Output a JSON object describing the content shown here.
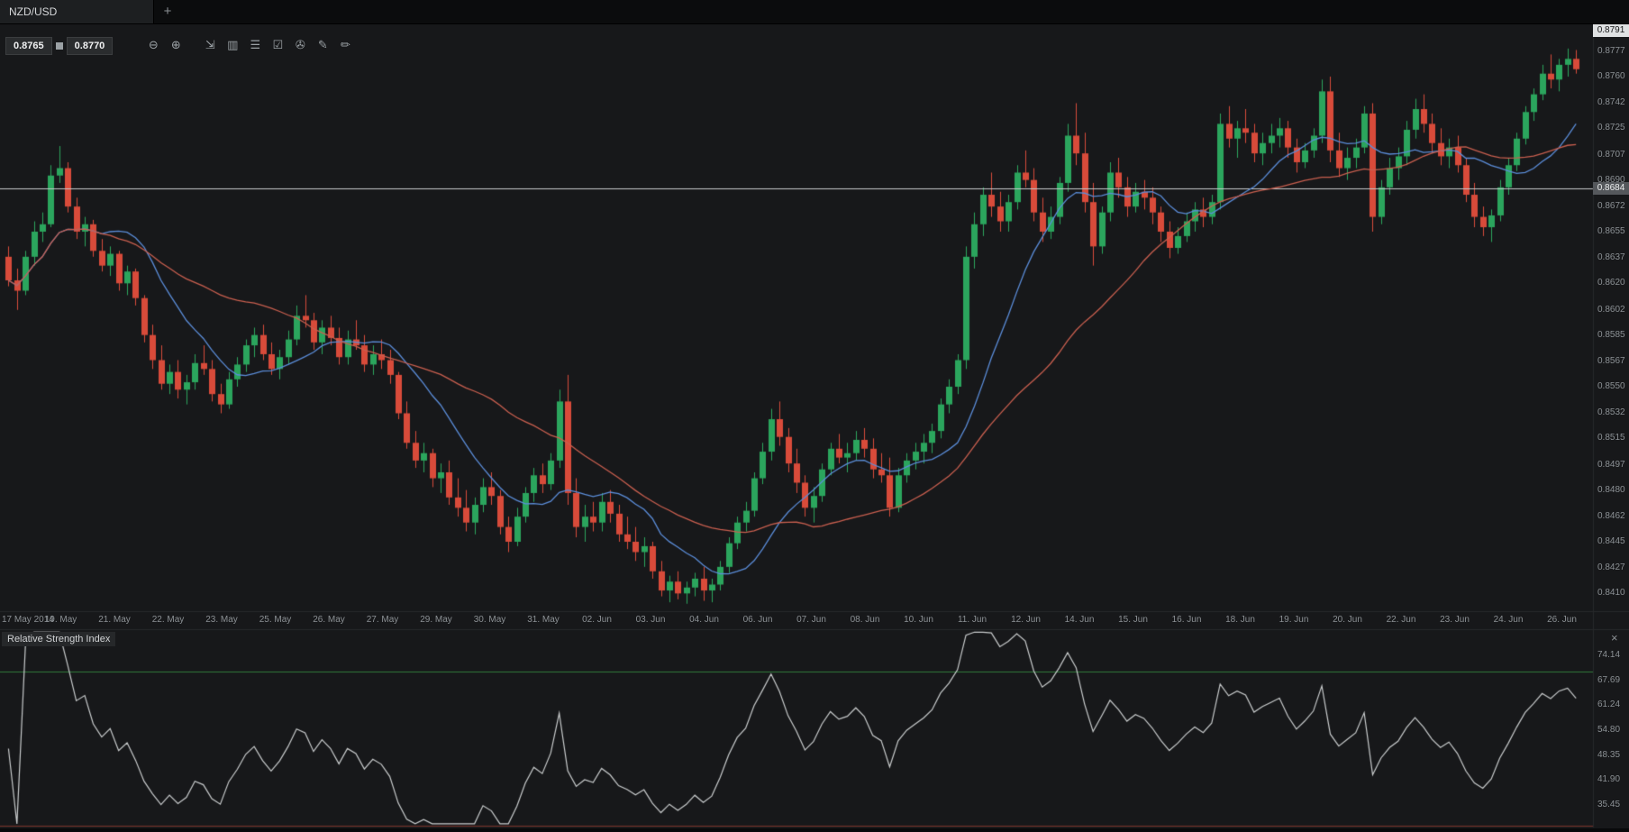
{
  "window": {
    "tab_label": "NZD/USD",
    "new_tab_label": "+"
  },
  "toolbar": {
    "sell_price": "0.8765",
    "buy_price": "0.8770",
    "icons": [
      {
        "name": "zoom-out-icon",
        "glyph": "⊖"
      },
      {
        "name": "zoom-in-icon",
        "glyph": "⊕",
        "gap_after": true
      },
      {
        "name": "scroll-to-latest-icon",
        "glyph": "⇲"
      },
      {
        "name": "chart-type-icon",
        "glyph": "▥"
      },
      {
        "name": "indicators-list-icon",
        "glyph": "☰"
      },
      {
        "name": "checkbox-options-icon",
        "glyph": "☑"
      },
      {
        "name": "attach-icon",
        "glyph": "✇"
      },
      {
        "name": "edit-annotations-icon",
        "glyph": "✎"
      },
      {
        "name": "draw-tool-icon",
        "glyph": "✏"
      }
    ]
  },
  "price_axis": {
    "top_marker": "0.8791",
    "line_marker": "0.8684",
    "labels": [
      "0.8777",
      "0.8760",
      "0.8742",
      "0.8725",
      "0.8707",
      "0.8690",
      "0.8672",
      "0.8655",
      "0.8637",
      "0.8620",
      "0.8602",
      "0.8585",
      "0.8567",
      "0.8550",
      "0.8532",
      "0.8515",
      "0.8497",
      "0.8480",
      "0.8462",
      "0.8445",
      "0.8427",
      "0.8410"
    ]
  },
  "time_axis": {
    "labels": [
      "17 May 2014",
      "19. May",
      "21. May",
      "22. May",
      "23. May",
      "25. May",
      "26. May",
      "27. May",
      "29. May",
      "30. May",
      "31. May",
      "02. Jun",
      "03. Jun",
      "04. Jun",
      "06. Jun",
      "07. Jun",
      "08. Jun",
      "10. Jun",
      "11. Jun",
      "12. Jun",
      "14. Jun",
      "15. Jun",
      "16. Jun",
      "18. Jun",
      "19. Jun",
      "20. Jun",
      "22. Jun",
      "23. Jun",
      "24. Jun",
      "26. Jun"
    ]
  },
  "indicator_panel": {
    "title": "Relative Strength Index",
    "close_label": "×",
    "axis_labels": [
      "74.14",
      "67.69",
      "61.24",
      "54.80",
      "48.35",
      "41.90",
      "35.45"
    ]
  },
  "colors": {
    "chart_bg": "#17181a",
    "separator": "#26282a",
    "up": "#2ba55d",
    "down": "#d84b3a",
    "price_line": "#c7cacc",
    "rsi_line": "#c9cccd",
    "overbought": "#2f7d3c",
    "oversold": "#7d352c"
  },
  "chart_data": {
    "type": "candlestick",
    "symbol": "NZD/USD",
    "x_range": [
      "17 May 2014",
      "26 Jun 2014"
    ],
    "price_range": [
      0.8398,
      0.8796
    ],
    "horizontal_line": 0.8684,
    "high_marker": 0.8791,
    "bid": 0.8765,
    "ask": 0.877,
    "overlays": [
      {
        "name": "sma-fast",
        "period": 12,
        "color": "#5b8dd9"
      },
      {
        "name": "sma-slow",
        "period": 30,
        "color": "#c95f4f"
      }
    ],
    "indicator": {
      "name": "Relative Strength Index",
      "period": 14,
      "overbought": 70,
      "oversold": 30,
      "range": [
        30.0,
        80.5
      ]
    },
    "candles": [
      [
        0.8638,
        0.8645,
        0.8618,
        0.8622
      ],
      [
        0.8622,
        0.863,
        0.8602,
        0.8615
      ],
      [
        0.8615,
        0.8642,
        0.8612,
        0.8638
      ],
      [
        0.8638,
        0.8662,
        0.8632,
        0.8655
      ],
      [
        0.8655,
        0.8668,
        0.8648,
        0.866
      ],
      [
        0.866,
        0.87,
        0.8658,
        0.8693
      ],
      [
        0.8693,
        0.8713,
        0.8688,
        0.8698
      ],
      [
        0.8698,
        0.8702,
        0.8668,
        0.8672
      ],
      [
        0.8672,
        0.8678,
        0.865,
        0.8655
      ],
      [
        0.8655,
        0.8665,
        0.8645,
        0.866
      ],
      [
        0.866,
        0.8663,
        0.8638,
        0.8642
      ],
      [
        0.8642,
        0.865,
        0.8628,
        0.8632
      ],
      [
        0.8632,
        0.8645,
        0.8625,
        0.864
      ],
      [
        0.864,
        0.8642,
        0.8615,
        0.862
      ],
      [
        0.862,
        0.8632,
        0.8612,
        0.8628
      ],
      [
        0.8628,
        0.863,
        0.8605,
        0.861
      ],
      [
        0.861,
        0.8612,
        0.858,
        0.8585
      ],
      [
        0.8585,
        0.8592,
        0.8562,
        0.8568
      ],
      [
        0.8568,
        0.8578,
        0.8548,
        0.8552
      ],
      [
        0.8552,
        0.8565,
        0.8545,
        0.856
      ],
      [
        0.856,
        0.8568,
        0.8542,
        0.8548
      ],
      [
        0.8548,
        0.8558,
        0.8538,
        0.8553
      ],
      [
        0.8553,
        0.8572,
        0.8548,
        0.8566
      ],
      [
        0.8566,
        0.8578,
        0.8558,
        0.8562
      ],
      [
        0.8562,
        0.8568,
        0.854,
        0.8545
      ],
      [
        0.8545,
        0.8552,
        0.8532,
        0.8538
      ],
      [
        0.8538,
        0.856,
        0.8535,
        0.8555
      ],
      [
        0.8555,
        0.857,
        0.855,
        0.8565
      ],
      [
        0.8565,
        0.8582,
        0.856,
        0.8578
      ],
      [
        0.8578,
        0.859,
        0.857,
        0.8585
      ],
      [
        0.8585,
        0.8592,
        0.8568,
        0.8572
      ],
      [
        0.8572,
        0.858,
        0.8558,
        0.8562
      ],
      [
        0.8562,
        0.8575,
        0.8555,
        0.857
      ],
      [
        0.857,
        0.8588,
        0.8565,
        0.8582
      ],
      [
        0.8582,
        0.8605,
        0.8578,
        0.8598
      ],
      [
        0.8598,
        0.8612,
        0.859,
        0.8595
      ],
      [
        0.8595,
        0.86,
        0.8575,
        0.858
      ],
      [
        0.858,
        0.8595,
        0.8572,
        0.859
      ],
      [
        0.859,
        0.8598,
        0.8578,
        0.8583
      ],
      [
        0.8583,
        0.859,
        0.8565,
        0.857
      ],
      [
        0.857,
        0.8588,
        0.8565,
        0.8582
      ],
      [
        0.8582,
        0.8595,
        0.8575,
        0.8578
      ],
      [
        0.8578,
        0.8585,
        0.856,
        0.8565
      ],
      [
        0.8565,
        0.8578,
        0.8558,
        0.8572
      ],
      [
        0.8572,
        0.8582,
        0.8562,
        0.8568
      ],
      [
        0.8568,
        0.8575,
        0.8552,
        0.8558
      ],
      [
        0.8558,
        0.856,
        0.8528,
        0.8532
      ],
      [
        0.8532,
        0.854,
        0.8508,
        0.8512
      ],
      [
        0.8512,
        0.852,
        0.8495,
        0.85
      ],
      [
        0.85,
        0.8512,
        0.8492,
        0.8505
      ],
      [
        0.8505,
        0.8508,
        0.8482,
        0.8488
      ],
      [
        0.8488,
        0.8498,
        0.8478,
        0.8492
      ],
      [
        0.8492,
        0.85,
        0.847,
        0.8475
      ],
      [
        0.8475,
        0.8488,
        0.8462,
        0.8468
      ],
      [
        0.8468,
        0.848,
        0.8452,
        0.8458
      ],
      [
        0.8458,
        0.8475,
        0.845,
        0.847
      ],
      [
        0.847,
        0.8488,
        0.8465,
        0.8482
      ],
      [
        0.8482,
        0.8492,
        0.847,
        0.8476
      ],
      [
        0.8476,
        0.848,
        0.845,
        0.8455
      ],
      [
        0.8455,
        0.8462,
        0.8438,
        0.8445
      ],
      [
        0.8445,
        0.8468,
        0.8442,
        0.8462
      ],
      [
        0.8462,
        0.8482,
        0.8458,
        0.8478
      ],
      [
        0.8478,
        0.8495,
        0.8472,
        0.849
      ],
      [
        0.849,
        0.8498,
        0.8478,
        0.8484
      ],
      [
        0.8484,
        0.8505,
        0.848,
        0.85
      ],
      [
        0.85,
        0.8548,
        0.8495,
        0.854
      ],
      [
        0.854,
        0.8558,
        0.847,
        0.8478
      ],
      [
        0.8478,
        0.8488,
        0.8448,
        0.8455
      ],
      [
        0.8455,
        0.847,
        0.8445,
        0.8462
      ],
      [
        0.8462,
        0.8472,
        0.8452,
        0.8458
      ],
      [
        0.8458,
        0.8478,
        0.8452,
        0.8472
      ],
      [
        0.8472,
        0.848,
        0.8458,
        0.8464
      ],
      [
        0.8464,
        0.847,
        0.8445,
        0.845
      ],
      [
        0.845,
        0.8462,
        0.844,
        0.8445
      ],
      [
        0.8445,
        0.8455,
        0.8432,
        0.8438
      ],
      [
        0.8438,
        0.8448,
        0.8428,
        0.8442
      ],
      [
        0.8442,
        0.8445,
        0.842,
        0.8425
      ],
      [
        0.8425,
        0.8432,
        0.8408,
        0.8412
      ],
      [
        0.8412,
        0.8422,
        0.8404,
        0.8418
      ],
      [
        0.8418,
        0.8425,
        0.8406,
        0.841
      ],
      [
        0.841,
        0.8418,
        0.8403,
        0.8414
      ],
      [
        0.8414,
        0.8424,
        0.8408,
        0.842
      ],
      [
        0.842,
        0.8428,
        0.8405,
        0.8412
      ],
      [
        0.8412,
        0.842,
        0.8404,
        0.8416
      ],
      [
        0.8416,
        0.8432,
        0.8412,
        0.8428
      ],
      [
        0.8428,
        0.8448,
        0.8424,
        0.8444
      ],
      [
        0.8444,
        0.8462,
        0.844,
        0.8458
      ],
      [
        0.8458,
        0.8472,
        0.8452,
        0.8466
      ],
      [
        0.8466,
        0.8492,
        0.8462,
        0.8488
      ],
      [
        0.8488,
        0.8512,
        0.8484,
        0.8506
      ],
      [
        0.8506,
        0.8535,
        0.85,
        0.8528
      ],
      [
        0.8528,
        0.854,
        0.851,
        0.8516
      ],
      [
        0.8516,
        0.8522,
        0.8492,
        0.8498
      ],
      [
        0.8498,
        0.8508,
        0.8478,
        0.8485
      ],
      [
        0.8485,
        0.849,
        0.8462,
        0.8468
      ],
      [
        0.8468,
        0.8482,
        0.8458,
        0.8476
      ],
      [
        0.8476,
        0.8498,
        0.8472,
        0.8494
      ],
      [
        0.8494,
        0.8512,
        0.849,
        0.8508
      ],
      [
        0.8508,
        0.8518,
        0.8498,
        0.8502
      ],
      [
        0.8502,
        0.8512,
        0.8492,
        0.8505
      ],
      [
        0.8505,
        0.852,
        0.85,
        0.8514
      ],
      [
        0.8514,
        0.8522,
        0.8502,
        0.8508
      ],
      [
        0.8508,
        0.8515,
        0.8488,
        0.8494
      ],
      [
        0.8494,
        0.8505,
        0.8485,
        0.849
      ],
      [
        0.849,
        0.8502,
        0.8462,
        0.8468
      ],
      [
        0.8468,
        0.8495,
        0.8465,
        0.849
      ],
      [
        0.849,
        0.8505,
        0.8485,
        0.85
      ],
      [
        0.85,
        0.8512,
        0.8494,
        0.8506
      ],
      [
        0.8506,
        0.8518,
        0.8498,
        0.8512
      ],
      [
        0.8512,
        0.8525,
        0.8505,
        0.852
      ],
      [
        0.852,
        0.8542,
        0.8515,
        0.8538
      ],
      [
        0.8538,
        0.8555,
        0.8532,
        0.855
      ],
      [
        0.855,
        0.8572,
        0.8545,
        0.8568
      ],
      [
        0.8568,
        0.8645,
        0.8562,
        0.8638
      ],
      [
        0.8638,
        0.8668,
        0.863,
        0.866
      ],
      [
        0.866,
        0.8685,
        0.8652,
        0.868
      ],
      [
        0.868,
        0.8695,
        0.8665,
        0.8672
      ],
      [
        0.8672,
        0.8682,
        0.8655,
        0.8662
      ],
      [
        0.8662,
        0.868,
        0.8655,
        0.8675
      ],
      [
        0.8675,
        0.87,
        0.867,
        0.8695
      ],
      [
        0.8695,
        0.871,
        0.8685,
        0.869
      ],
      [
        0.869,
        0.8698,
        0.8662,
        0.8668
      ],
      [
        0.8668,
        0.8678,
        0.8648,
        0.8655
      ],
      [
        0.8655,
        0.8672,
        0.865,
        0.8665
      ],
      [
        0.8665,
        0.8692,
        0.866,
        0.8688
      ],
      [
        0.8688,
        0.8728,
        0.8682,
        0.872
      ],
      [
        0.872,
        0.8742,
        0.87,
        0.8708
      ],
      [
        0.8708,
        0.8722,
        0.8668,
        0.8675
      ],
      [
        0.8675,
        0.8688,
        0.8632,
        0.8645
      ],
      [
        0.8645,
        0.8672,
        0.864,
        0.8668
      ],
      [
        0.8668,
        0.8702,
        0.8662,
        0.8695
      ],
      [
        0.8695,
        0.8705,
        0.8678,
        0.8685
      ],
      [
        0.8685,
        0.8692,
        0.8665,
        0.8672
      ],
      [
        0.8672,
        0.8688,
        0.8668,
        0.8682
      ],
      [
        0.8682,
        0.869,
        0.867,
        0.8678
      ],
      [
        0.8678,
        0.8685,
        0.866,
        0.8668
      ],
      [
        0.8668,
        0.8672,
        0.8648,
        0.8655
      ],
      [
        0.8655,
        0.8662,
        0.8637,
        0.8644
      ],
      [
        0.8644,
        0.8658,
        0.864,
        0.8652
      ],
      [
        0.8652,
        0.8668,
        0.8648,
        0.8662
      ],
      [
        0.8662,
        0.8675,
        0.8655,
        0.867
      ],
      [
        0.867,
        0.8678,
        0.8658,
        0.8665
      ],
      [
        0.8665,
        0.868,
        0.866,
        0.8675
      ],
      [
        0.8675,
        0.8735,
        0.867,
        0.8728
      ],
      [
        0.8728,
        0.874,
        0.8712,
        0.8718
      ],
      [
        0.8718,
        0.873,
        0.8705,
        0.8725
      ],
      [
        0.8725,
        0.8738,
        0.8715,
        0.8722
      ],
      [
        0.8722,
        0.8728,
        0.8702,
        0.8708
      ],
      [
        0.8708,
        0.8722,
        0.87,
        0.8715
      ],
      [
        0.8715,
        0.8728,
        0.8708,
        0.872
      ],
      [
        0.872,
        0.8732,
        0.8712,
        0.8725
      ],
      [
        0.8725,
        0.873,
        0.8705,
        0.8712
      ],
      [
        0.8712,
        0.8718,
        0.8695,
        0.8702
      ],
      [
        0.8702,
        0.8715,
        0.8698,
        0.871
      ],
      [
        0.871,
        0.8725,
        0.8705,
        0.872
      ],
      [
        0.872,
        0.8758,
        0.8715,
        0.875
      ],
      [
        0.875,
        0.876,
        0.8702,
        0.871
      ],
      [
        0.871,
        0.8722,
        0.8692,
        0.8698
      ],
      [
        0.8698,
        0.8712,
        0.869,
        0.8705
      ],
      [
        0.8705,
        0.8718,
        0.8698,
        0.8712
      ],
      [
        0.8712,
        0.874,
        0.8708,
        0.8735
      ],
      [
        0.8735,
        0.8742,
        0.8655,
        0.8665
      ],
      [
        0.8665,
        0.869,
        0.866,
        0.8685
      ],
      [
        0.8685,
        0.8705,
        0.868,
        0.8698
      ],
      [
        0.8698,
        0.8712,
        0.869,
        0.8706
      ],
      [
        0.8706,
        0.873,
        0.87,
        0.8724
      ],
      [
        0.8724,
        0.8745,
        0.8718,
        0.8738
      ],
      [
        0.8738,
        0.8748,
        0.8722,
        0.8728
      ],
      [
        0.8728,
        0.8735,
        0.8708,
        0.8715
      ],
      [
        0.8715,
        0.8725,
        0.87,
        0.8706
      ],
      [
        0.8706,
        0.8718,
        0.8698,
        0.8712
      ],
      [
        0.8712,
        0.872,
        0.8695,
        0.87
      ],
      [
        0.87,
        0.8705,
        0.8675,
        0.868
      ],
      [
        0.868,
        0.8688,
        0.8658,
        0.8665
      ],
      [
        0.8665,
        0.8672,
        0.8652,
        0.8658
      ],
      [
        0.8658,
        0.867,
        0.8648,
        0.8666
      ],
      [
        0.8666,
        0.869,
        0.8662,
        0.8685
      ],
      [
        0.8685,
        0.8705,
        0.868,
        0.87
      ],
      [
        0.87,
        0.8722,
        0.8696,
        0.8718
      ],
      [
        0.8718,
        0.874,
        0.8714,
        0.8736
      ],
      [
        0.8736,
        0.8752,
        0.873,
        0.8748
      ],
      [
        0.8748,
        0.8768,
        0.8744,
        0.8762
      ],
      [
        0.8762,
        0.8775,
        0.8752,
        0.8758
      ],
      [
        0.8758,
        0.8772,
        0.875,
        0.8768
      ],
      [
        0.8768,
        0.8779,
        0.876,
        0.8772
      ],
      [
        0.8772,
        0.8778,
        0.8762,
        0.8765
      ]
    ]
  }
}
